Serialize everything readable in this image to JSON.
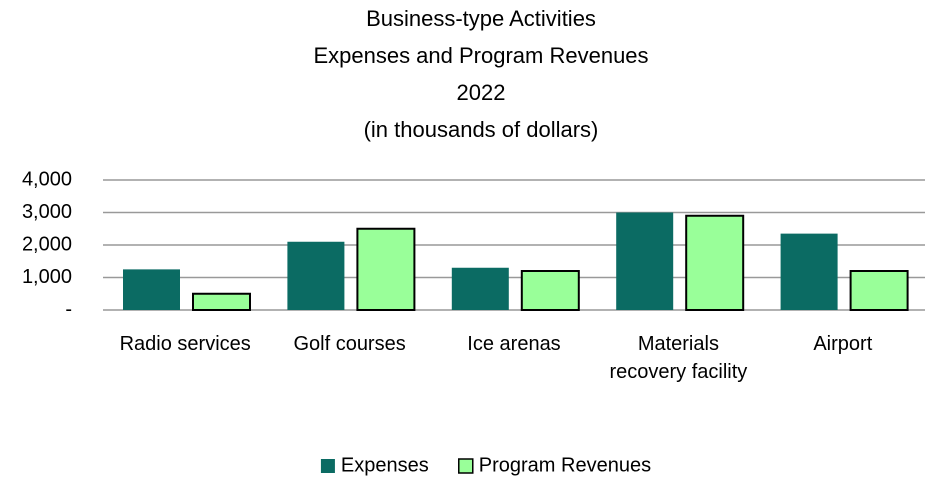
{
  "chart_data": {
    "type": "bar",
    "title": [
      "Business-type Activities",
      "Expenses and Program Revenues",
      "2022",
      "(in thousands of dollars)"
    ],
    "categories": [
      "Radio services",
      "Golf courses",
      "Ice arenas",
      "Materials recovery facility",
      "Airport"
    ],
    "series": [
      {
        "name": "Expenses",
        "color": "#0b6b63",
        "values": [
          1250,
          2100,
          1300,
          3000,
          2350
        ]
      },
      {
        "name": "Program Revenues",
        "color": "#99ff99",
        "values": [
          500,
          2500,
          1200,
          2900,
          1200
        ]
      }
    ],
    "ylim": [
      0,
      4000
    ],
    "yticks": [
      {
        "value": 0,
        "label": "-"
      },
      {
        "value": 1000,
        "label": "1,000"
      },
      {
        "value": 2000,
        "label": "2,000"
      },
      {
        "value": 3000,
        "label": "3,000"
      },
      {
        "value": 4000,
        "label": "4,000"
      }
    ],
    "grid": true,
    "legend": "bottom"
  }
}
